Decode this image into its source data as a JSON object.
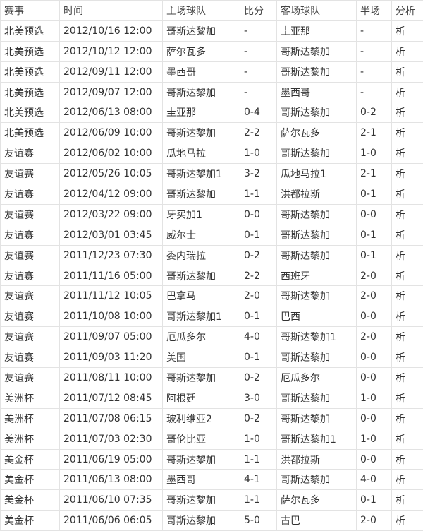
{
  "table": {
    "header": [
      "赛事",
      "时间",
      "主场球队",
      "比分",
      "客场球队",
      "半场",
      "分析"
    ],
    "rows": [
      [
        "北美预选",
        "2012/10/16 12:00",
        "哥斯达黎加",
        "-",
        "圭亚那",
        "-",
        "析"
      ],
      [
        "北美预选",
        "2012/10/12 12:00",
        "萨尔瓦多",
        "-",
        "哥斯达黎加",
        "-",
        "析"
      ],
      [
        "北美预选",
        "2012/09/11 12:00",
        "墨西哥",
        "-",
        "哥斯达黎加",
        "-",
        "析"
      ],
      [
        "北美预选",
        "2012/09/07 12:00",
        "哥斯达黎加",
        "-",
        "墨西哥",
        "-",
        "析"
      ],
      [
        "北美预选",
        "2012/06/13 08:00",
        "圭亚那",
        "0-4",
        "哥斯达黎加",
        "0-2",
        "析"
      ],
      [
        "北美预选",
        "2012/06/09 10:00",
        "哥斯达黎加",
        "2-2",
        "萨尔瓦多",
        "2-1",
        "析"
      ],
      [
        "友谊赛",
        "2012/06/02 10:00",
        "瓜地马拉",
        "1-0",
        "哥斯达黎加",
        "1-0",
        "析"
      ],
      [
        "友谊赛",
        "2012/05/26 10:05",
        "哥斯达黎加1",
        "3-2",
        "瓜地马拉1",
        "2-1",
        "析"
      ],
      [
        "友谊赛",
        "2012/04/12 09:00",
        "哥斯达黎加",
        "1-1",
        "洪都拉斯",
        "0-1",
        "析"
      ],
      [
        "友谊赛",
        "2012/03/22 09:00",
        "牙买加1",
        "0-0",
        "哥斯达黎加",
        "0-0",
        "析"
      ],
      [
        "友谊赛",
        "2012/03/01 03:45",
        "威尔士",
        "0-1",
        "哥斯达黎加",
        "0-1",
        "析"
      ],
      [
        "友谊赛",
        "2011/12/23 07:30",
        "委内瑞拉",
        "0-2",
        "哥斯达黎加",
        "0-1",
        "析"
      ],
      [
        "友谊赛",
        "2011/11/16 05:00",
        "哥斯达黎加",
        "2-2",
        "西班牙",
        "2-0",
        "析"
      ],
      [
        "友谊赛",
        "2011/11/12 10:05",
        "巴拿马",
        "2-0",
        "哥斯达黎加",
        "2-0",
        "析"
      ],
      [
        "友谊赛",
        "2011/10/08 10:00",
        "哥斯达黎加1",
        "0-1",
        "巴西",
        "0-0",
        "析"
      ],
      [
        "友谊赛",
        "2011/09/07 05:00",
        "厄瓜多尔",
        "4-0",
        "哥斯达黎加1",
        "2-0",
        "析"
      ],
      [
        "友谊赛",
        "2011/09/03 11:20",
        "美国",
        "0-1",
        "哥斯达黎加",
        "0-0",
        "析"
      ],
      [
        "友谊赛",
        "2011/08/11 10:00",
        "哥斯达黎加",
        "0-2",
        "厄瓜多尔",
        "0-0",
        "析"
      ],
      [
        "美洲杯",
        "2011/07/12 08:45",
        "阿根廷",
        "3-0",
        "哥斯达黎加",
        "1-0",
        "析"
      ],
      [
        "美洲杯",
        "2011/07/08 06:15",
        "玻利维亚2",
        "0-2",
        "哥斯达黎加",
        "0-0",
        "析"
      ],
      [
        "美洲杯",
        "2011/07/03 02:30",
        "哥伦比亚",
        "1-0",
        "哥斯达黎加1",
        "1-0",
        "析"
      ],
      [
        "美金杯",
        "2011/06/19 05:00",
        "哥斯达黎加",
        "1-1",
        "洪都拉斯",
        "0-0",
        "析"
      ],
      [
        "美金杯",
        "2011/06/13 08:00",
        "墨西哥",
        "4-1",
        "哥斯达黎加",
        "4-0",
        "析"
      ],
      [
        "美金杯",
        "2011/06/10 07:35",
        "哥斯达黎加",
        "1-1",
        "萨尔瓦多",
        "0-1",
        "析"
      ],
      [
        "美金杯",
        "2011/06/06 06:05",
        "哥斯达黎加",
        "5-0",
        "古巴",
        "2-0",
        "析"
      ]
    ]
  }
}
